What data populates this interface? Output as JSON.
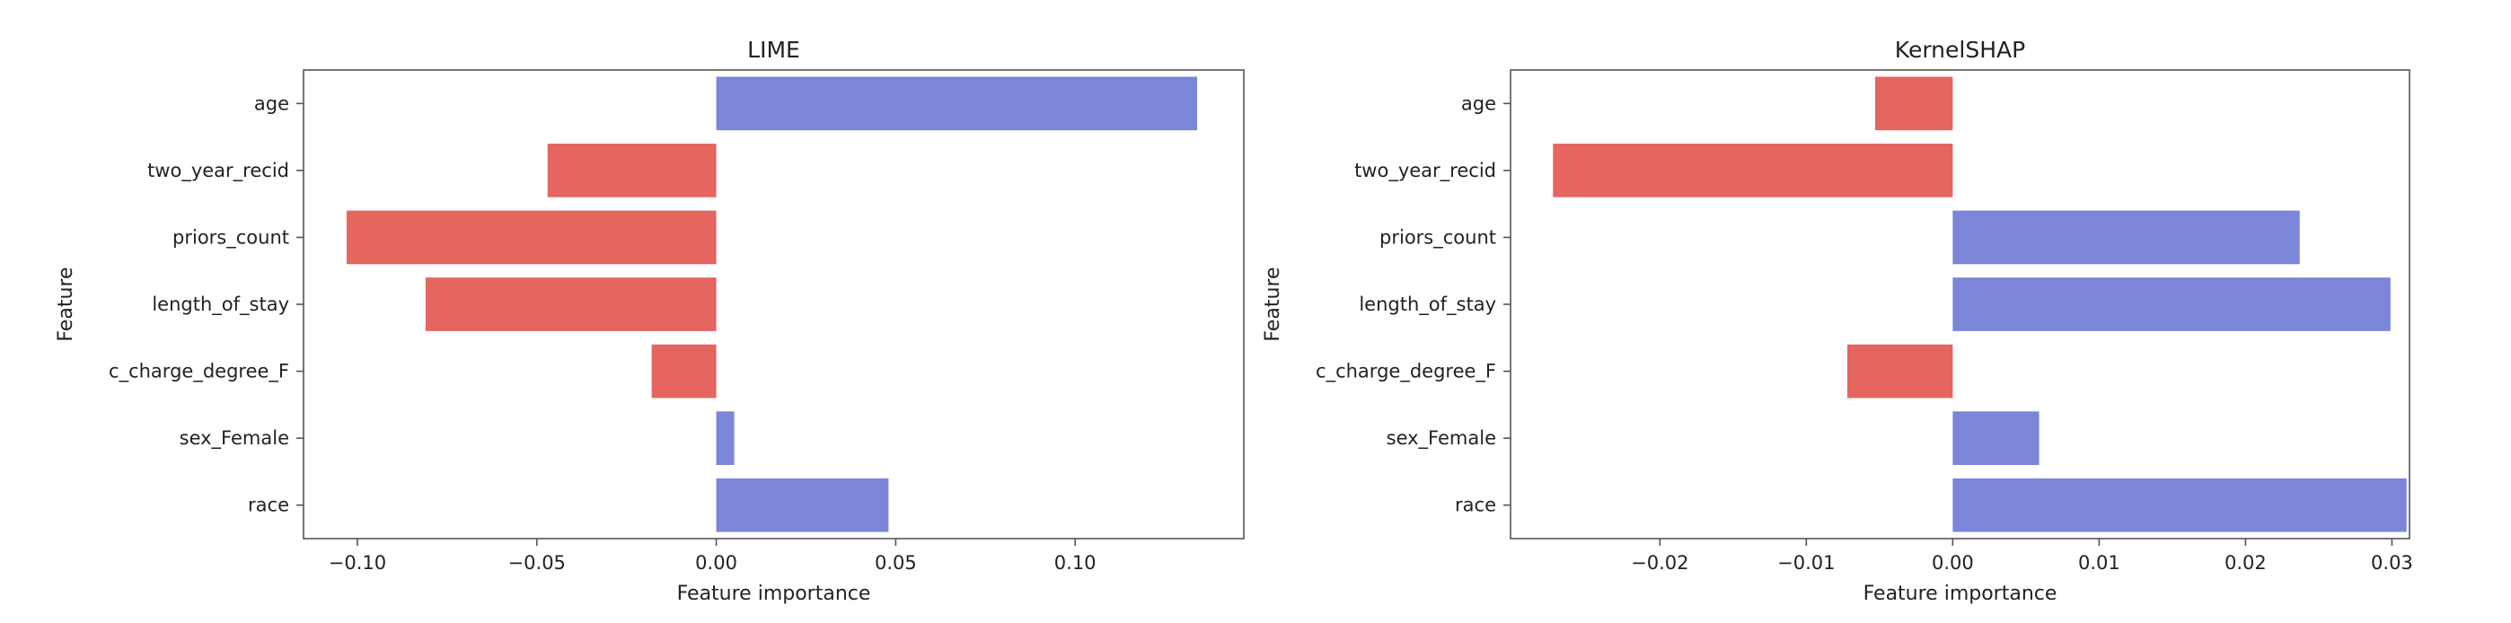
{
  "chart_data": [
    {
      "type": "bar",
      "orientation": "horizontal",
      "title": "LIME",
      "xlabel": "Feature importance",
      "ylabel": "Feature",
      "categories": [
        "age",
        "two_year_recid",
        "priors_count",
        "length_of_stay",
        "c_charge_degree_F",
        "sex_Female",
        "race"
      ],
      "values": [
        0.134,
        -0.047,
        -0.103,
        -0.081,
        -0.018,
        0.005,
        0.048
      ],
      "xlim": [
        -0.115,
        0.147
      ],
      "xticks": [
        -0.1,
        -0.05,
        0.0,
        0.05,
        0.1
      ],
      "xtick_labels": [
        "−0.10",
        "−0.05",
        "0.00",
        "0.05",
        "0.10"
      ],
      "grid": false
    },
    {
      "type": "bar",
      "orientation": "horizontal",
      "title": "KernelSHAP",
      "xlabel": "Feature importance",
      "ylabel": "Feature",
      "categories": [
        "age",
        "two_year_recid",
        "priors_count",
        "length_of_stay",
        "c_charge_degree_F",
        "sex_Female",
        "race"
      ],
      "values": [
        -0.0053,
        -0.0273,
        0.0237,
        0.0299,
        -0.0072,
        0.0059,
        0.031
      ],
      "xlim": [
        -0.0302,
        0.0312
      ],
      "xticks": [
        -0.02,
        -0.01,
        0.0,
        0.01,
        0.02,
        0.03
      ],
      "xtick_labels": [
        "−0.02",
        "−0.01",
        "0.00",
        "0.01",
        "0.02",
        "0.03"
      ],
      "grid": false
    }
  ],
  "colors": {
    "positive": "#7b86d9",
    "negative": "#e56560",
    "axis": "#555555",
    "text": "#222222"
  }
}
